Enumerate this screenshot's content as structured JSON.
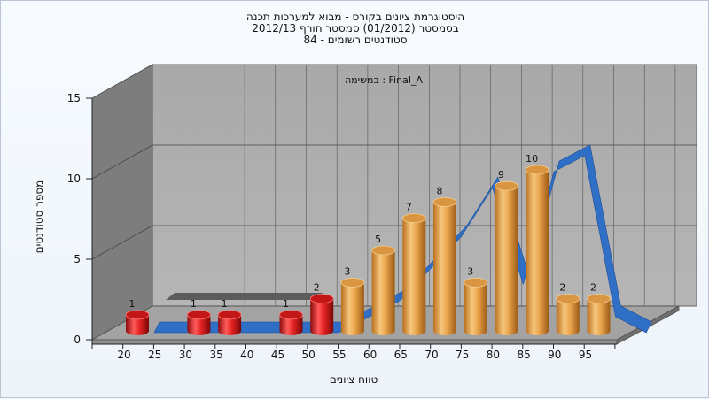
{
  "chart_data": {
    "type": "bar",
    "title_lines": [
      "היסטוגרמת ציונים בקורס - מבוא למערכות תכנה",
      "בסמסטר  (01/2012)  סמסטר חורף 2012/13",
      "סטודנטים רשומים - 84"
    ],
    "inner_label": "במשימה : Final_A",
    "xlabel": "טווח ציונים",
    "ylabel": "מספר סטודנטים",
    "ylim": [
      0,
      15
    ],
    "y_ticks": [
      "0",
      "5",
      "10",
      "15"
    ],
    "x_ticks": [
      "20",
      "25",
      "30",
      "35",
      "40",
      "45",
      "50",
      "55",
      "60",
      "65",
      "70",
      "75",
      "80",
      "85",
      "90",
      "95"
    ],
    "bars": [
      {
        "x": 20,
        "value": 1,
        "label": "1",
        "color": "#e32222"
      },
      {
        "x": 30,
        "value": 1,
        "label": "1",
        "color": "#e32222"
      },
      {
        "x": 35,
        "value": 1,
        "label": "1",
        "color": "#e32222"
      },
      {
        "x": 45,
        "value": 1,
        "label": "1",
        "color": "#e32222"
      },
      {
        "x": 50,
        "value": 2,
        "label": "2",
        "color": "#e32222"
      },
      {
        "x": 55,
        "value": 3,
        "label": "3",
        "color": "#e8a34a"
      },
      {
        "x": 60,
        "value": 5,
        "label": "5",
        "color": "#e8a34a"
      },
      {
        "x": 65,
        "value": 7,
        "label": "7",
        "color": "#e8a34a"
      },
      {
        "x": 70,
        "value": 8,
        "label": "8",
        "color": "#e8a34a"
      },
      {
        "x": 75,
        "value": 3,
        "label": "3",
        "color": "#e8a34a"
      },
      {
        "x": 80,
        "value": 9,
        "label": "9",
        "color": "#e8a34a"
      },
      {
        "x": 85,
        "value": 10,
        "label": "10",
        "color": "#e8a34a"
      },
      {
        "x": 90,
        "value": 2,
        "label": "2",
        "color": "#e8a34a"
      },
      {
        "x": 95,
        "value": 2,
        "label": "2",
        "color": "#e8a34a"
      }
    ],
    "curve": {
      "color": "#2f6fc6"
    },
    "grid": true
  }
}
